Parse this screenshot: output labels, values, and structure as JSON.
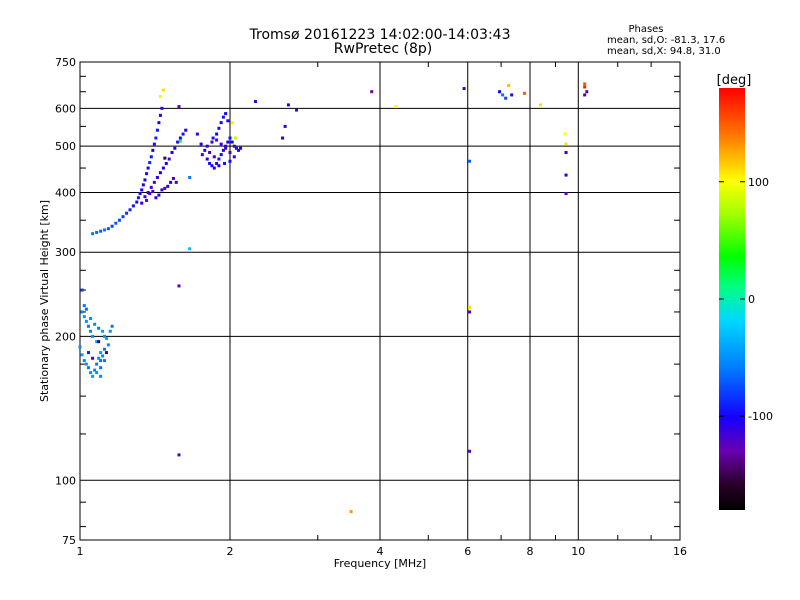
{
  "header": {
    "title_line1": "Tromsø 20161223 14:02:00-14:03:43",
    "title_line2": "RwPretec (8p)"
  },
  "stats": {
    "heading": "Phases",
    "line_o": "mean, sd,O: -81.3, 17.6",
    "line_x": "mean, sd,X:  94.8, 31.0"
  },
  "colorbar": {
    "unit_label": "[deg]",
    "range": [
      -180,
      180
    ],
    "ticks": [
      {
        "value": 100,
        "label": "100"
      },
      {
        "value": 0,
        "label": "0"
      },
      {
        "value": -100,
        "label": "-100"
      }
    ]
  },
  "chart_data": {
    "type": "scatter",
    "title": "Tromsø 20161223 14:02:00-14:03:43",
    "subtitle": "RwPretec (8p)",
    "xlabel": "Frequency [MHz]",
    "ylabel": "Stationary phase Virtual Height [km]",
    "xscale": "log",
    "yscale": "log",
    "xlim": [
      1,
      16
    ],
    "ylim": [
      75,
      750
    ],
    "xticks": [
      {
        "value": 1,
        "label": "1"
      },
      {
        "value": 2,
        "label": "2"
      },
      {
        "value": 4,
        "label": "4"
      },
      {
        "value": 6,
        "label": "6"
      },
      {
        "value": 8,
        "label": "8"
      },
      {
        "value": 10,
        "label": "10"
      },
      {
        "value": 16,
        "label": "16"
      }
    ],
    "yticks": [
      {
        "value": 75,
        "label": "75"
      },
      {
        "value": 100,
        "label": "100"
      },
      {
        "value": 200,
        "label": "200"
      },
      {
        "value": 300,
        "label": "300"
      },
      {
        "value": 400,
        "label": "400"
      },
      {
        "value": 500,
        "label": "500"
      },
      {
        "value": 600,
        "label": "600"
      },
      {
        "value": 750,
        "label": "750"
      }
    ],
    "grid": true,
    "color_by": "phase [deg]",
    "points": [
      [
        1.0,
        190,
        -50
      ],
      [
        1.01,
        183,
        -40
      ],
      [
        1.02,
        178,
        -55
      ],
      [
        1.03,
        175,
        -45
      ],
      [
        1.04,
        172,
        -60
      ],
      [
        1.05,
        168,
        -50
      ],
      [
        1.06,
        165,
        -45
      ],
      [
        1.07,
        170,
        -55
      ],
      [
        1.08,
        175,
        -60
      ],
      [
        1.09,
        180,
        -50
      ],
      [
        1.1,
        185,
        -45
      ],
      [
        1.1,
        178,
        -65
      ],
      [
        1.11,
        182,
        -55
      ],
      [
        1.12,
        188,
        -60
      ],
      [
        1.08,
        195,
        -40
      ],
      [
        1.06,
        200,
        -50
      ],
      [
        1.05,
        205,
        -55
      ],
      [
        1.04,
        210,
        -60
      ],
      [
        1.03,
        215,
        -50
      ],
      [
        1.02,
        220,
        -45
      ],
      [
        1.01,
        225,
        -55
      ],
      [
        1.02,
        232,
        -60
      ],
      [
        1.03,
        228,
        -65
      ],
      [
        1.05,
        218,
        -50
      ],
      [
        1.07,
        212,
        -55
      ],
      [
        1.09,
        208,
        -60
      ],
      [
        1.11,
        205,
        -45
      ],
      [
        1.12,
        200,
        -50
      ],
      [
        1.13,
        198,
        -40
      ],
      [
        1.14,
        192,
        -55
      ],
      [
        1.12,
        178,
        -60
      ],
      [
        1.1,
        172,
        -65
      ],
      [
        1.08,
        168,
        -50
      ],
      [
        1.15,
        205,
        -50
      ],
      [
        1.16,
        210,
        -60
      ],
      [
        1.04,
        185,
        -90
      ],
      [
        1.06,
        180,
        -120
      ],
      [
        1.09,
        195,
        -150
      ],
      [
        1.13,
        185,
        -140
      ],
      [
        1.1,
        165,
        -55
      ],
      [
        1.01,
        250,
        -80
      ],
      [
        1.06,
        328,
        -60
      ],
      [
        1.08,
        330,
        -65
      ],
      [
        1.1,
        332,
        -70
      ],
      [
        1.12,
        334,
        -60
      ],
      [
        1.14,
        336,
        -75
      ],
      [
        1.16,
        340,
        -80
      ],
      [
        1.18,
        345,
        -70
      ],
      [
        1.2,
        350,
        -75
      ],
      [
        1.22,
        356,
        -80
      ],
      [
        1.24,
        362,
        -85
      ],
      [
        1.26,
        368,
        -90
      ],
      [
        1.28,
        375,
        -95
      ],
      [
        1.3,
        382,
        -100
      ],
      [
        1.31,
        390,
        -95
      ],
      [
        1.32,
        398,
        -105
      ],
      [
        1.33,
        405,
        -100
      ],
      [
        1.34,
        415,
        -105
      ],
      [
        1.35,
        425,
        -100
      ],
      [
        1.36,
        438,
        -95
      ],
      [
        1.37,
        450,
        -100
      ],
      [
        1.38,
        462,
        -90
      ],
      [
        1.39,
        475,
        -95
      ],
      [
        1.4,
        490,
        -100
      ],
      [
        1.41,
        505,
        -95
      ],
      [
        1.42,
        520,
        -90
      ],
      [
        1.43,
        540,
        -95
      ],
      [
        1.44,
        560,
        -100
      ],
      [
        1.45,
        580,
        -105
      ],
      [
        1.46,
        600,
        -110
      ],
      [
        1.45,
        635,
        95
      ],
      [
        1.47,
        655,
        110
      ],
      [
        1.37,
        400,
        -110
      ],
      [
        1.39,
        410,
        -115
      ],
      [
        1.41,
        420,
        -120
      ],
      [
        1.43,
        430,
        -110
      ],
      [
        1.45,
        440,
        -100
      ],
      [
        1.47,
        450,
        -105
      ],
      [
        1.49,
        460,
        -110
      ],
      [
        1.51,
        470,
        -115
      ],
      [
        1.53,
        485,
        -100
      ],
      [
        1.55,
        495,
        -105
      ],
      [
        1.57,
        510,
        -110
      ],
      [
        1.59,
        520,
        -100
      ],
      [
        1.61,
        530,
        -95
      ],
      [
        1.63,
        540,
        -100
      ],
      [
        1.35,
        392,
        -110
      ],
      [
        1.38,
        398,
        -115
      ],
      [
        1.4,
        402,
        -120
      ],
      [
        1.42,
        390,
        -110
      ],
      [
        1.44,
        395,
        -105
      ],
      [
        1.46,
        405,
        -115
      ],
      [
        1.48,
        408,
        -120
      ],
      [
        1.5,
        412,
        -110
      ],
      [
        1.52,
        420,
        -105
      ],
      [
        1.54,
        428,
        -115
      ],
      [
        1.56,
        420,
        -110
      ],
      [
        1.33,
        380,
        -110
      ],
      [
        1.36,
        385,
        -120
      ],
      [
        1.58,
        605,
        -120
      ],
      [
        1.59,
        512,
        20
      ],
      [
        1.48,
        472,
        -150
      ],
      [
        1.66,
        430,
        -60
      ],
      [
        1.66,
        305,
        -30
      ],
      [
        1.58,
        255,
        -120
      ],
      [
        1.58,
        113,
        -120
      ],
      [
        1.75,
        505,
        -100
      ],
      [
        1.78,
        490,
        -95
      ],
      [
        1.8,
        470,
        -100
      ],
      [
        1.82,
        460,
        -95
      ],
      [
        1.84,
        455,
        -100
      ],
      [
        1.86,
        450,
        -105
      ],
      [
        1.88,
        460,
        -110
      ],
      [
        1.9,
        470,
        -95
      ],
      [
        1.92,
        480,
        -100
      ],
      [
        1.94,
        490,
        -105
      ],
      [
        1.96,
        500,
        -110
      ],
      [
        1.98,
        510,
        -100
      ],
      [
        2.0,
        520,
        -95
      ],
      [
        2.02,
        510,
        -100
      ],
      [
        2.04,
        500,
        -105
      ],
      [
        2.06,
        495,
        -110
      ],
      [
        2.08,
        490,
        -100
      ],
      [
        1.85,
        520,
        -95
      ],
      [
        1.88,
        530,
        -100
      ],
      [
        1.9,
        545,
        -105
      ],
      [
        1.92,
        560,
        -100
      ],
      [
        1.94,
        575,
        -95
      ],
      [
        1.96,
        585,
        -100
      ],
      [
        1.98,
        565,
        -105
      ],
      [
        1.76,
        480,
        -120
      ],
      [
        1.8,
        500,
        -110
      ],
      [
        1.84,
        510,
        -115
      ],
      [
        1.88,
        515,
        -120
      ],
      [
        1.92,
        505,
        -110
      ],
      [
        1.96,
        495,
        -115
      ],
      [
        2.0,
        485,
        -120
      ],
      [
        2.04,
        475,
        -110
      ],
      [
        1.9,
        455,
        -100
      ],
      [
        1.95,
        460,
        -95
      ],
      [
        2.0,
        465,
        -100
      ],
      [
        1.82,
        485,
        -120
      ],
      [
        1.86,
        475,
        -115
      ],
      [
        2.05,
        520,
        80
      ],
      [
        2.1,
        495,
        -100
      ],
      [
        2.02,
        560,
        90
      ],
      [
        1.72,
        530,
        -110
      ],
      [
        2.25,
        620,
        -110
      ],
      [
        2.55,
        520,
        -100
      ],
      [
        2.58,
        550,
        -105
      ],
      [
        2.62,
        610,
        -110
      ],
      [
        2.72,
        595,
        -115
      ],
      [
        3.85,
        650,
        -130
      ],
      [
        4.3,
        605,
        100
      ],
      [
        5.9,
        660,
        -110
      ],
      [
        6.05,
        230,
        110
      ],
      [
        6.05,
        225,
        -120
      ],
      [
        6.05,
        465,
        -70
      ],
      [
        6.05,
        115,
        -120
      ],
      [
        6.95,
        650,
        -100
      ],
      [
        7.05,
        640,
        -60
      ],
      [
        7.15,
        630,
        -80
      ],
      [
        7.25,
        670,
        120
      ],
      [
        7.35,
        640,
        -110
      ],
      [
        7.8,
        645,
        150
      ],
      [
        8.4,
        610,
        110
      ],
      [
        9.4,
        530,
        100
      ],
      [
        9.45,
        485,
        -110
      ],
      [
        9.45,
        435,
        -100
      ],
      [
        9.45,
        398,
        -120
      ],
      [
        9.45,
        505,
        110
      ],
      [
        10.3,
        665,
        170
      ],
      [
        10.3,
        675,
        150
      ],
      [
        10.4,
        650,
        -120
      ],
      [
        10.3,
        640,
        -120
      ],
      [
        3.5,
        86,
        130
      ]
    ]
  }
}
